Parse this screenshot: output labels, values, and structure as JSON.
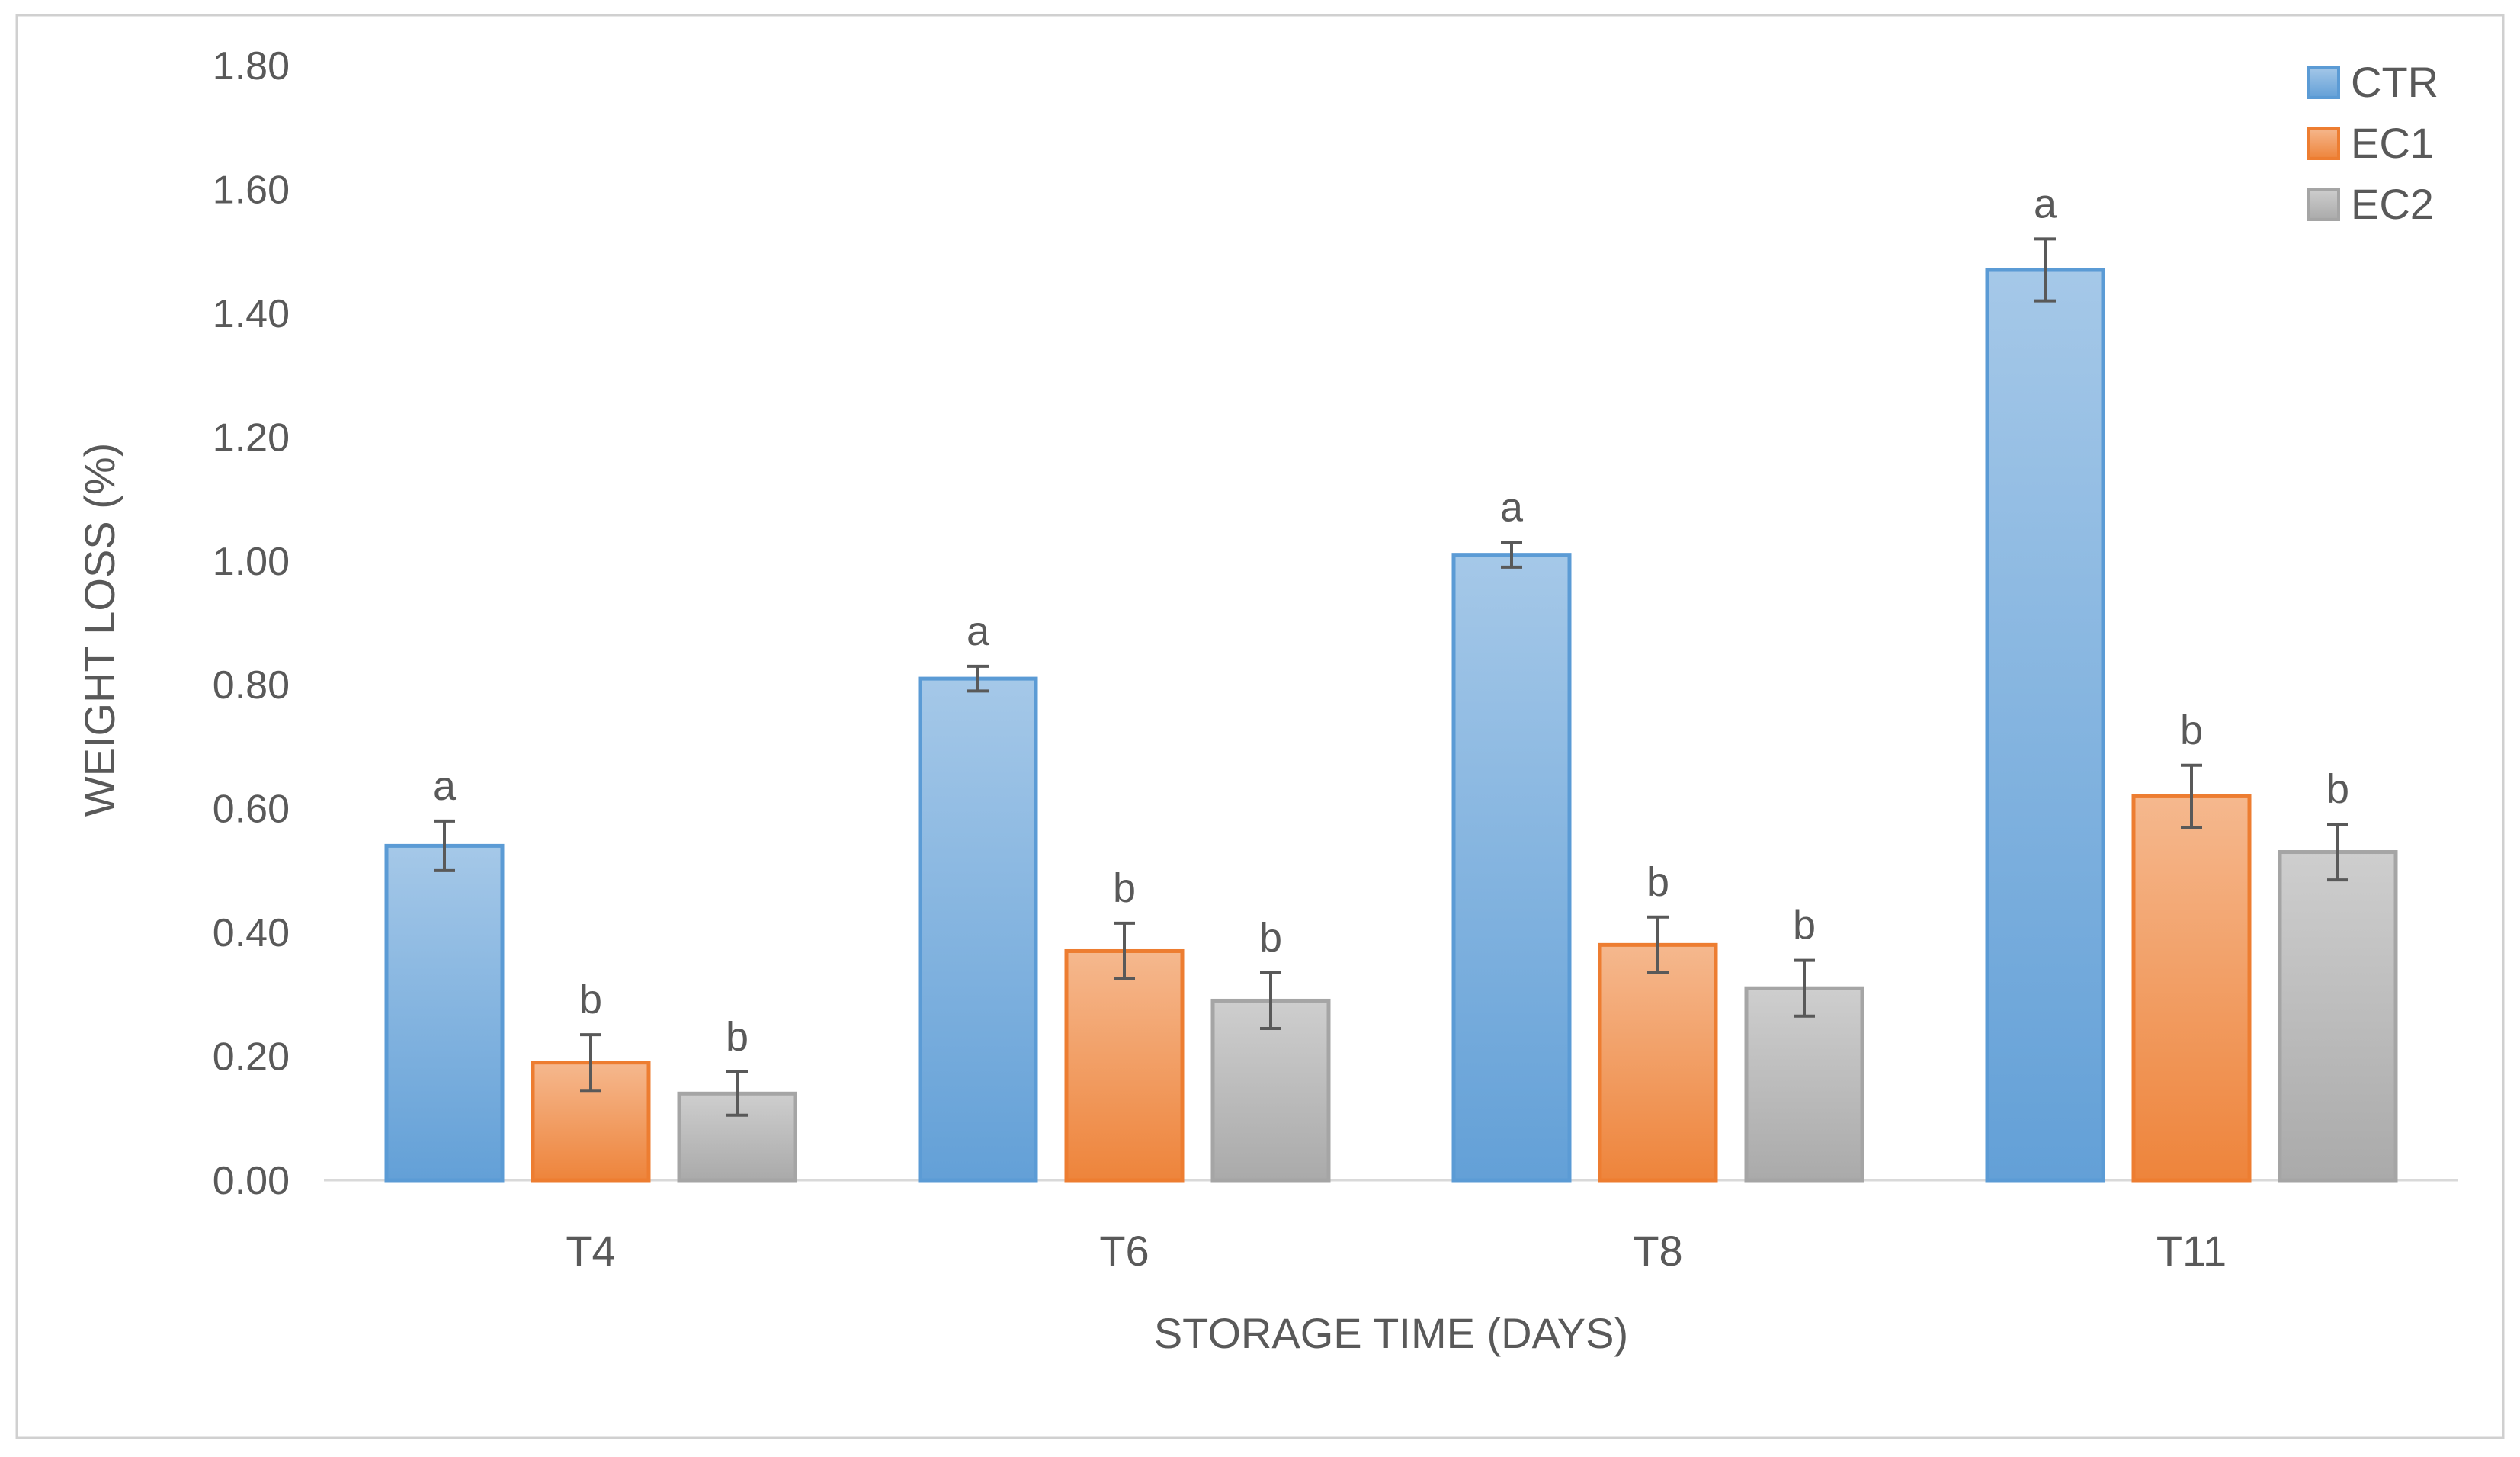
{
  "chart_data": {
    "type": "bar",
    "xlabel": "STORAGE TIME (DAYS)",
    "ylabel": "WEIGHT LOSS (%)",
    "ylim": [
      0,
      1.8
    ],
    "y_ticks": [
      "0.00",
      "0.20",
      "0.40",
      "0.60",
      "0.80",
      "1.00",
      "1.20",
      "1.40",
      "1.60",
      "1.80"
    ],
    "y_tick_values": [
      0,
      0.2,
      0.4,
      0.6,
      0.8,
      1.0,
      1.2,
      1.4,
      1.6,
      1.8
    ],
    "categories": [
      "T4",
      "T6",
      "T8",
      "T11"
    ],
    "grid": false,
    "legend_position": "top-right",
    "series": [
      {
        "name": "CTR",
        "color": "#5B9BD5",
        "values": [
          0.54,
          0.81,
          1.01,
          1.47
        ],
        "errors": [
          0.04,
          0.02,
          0.02,
          0.05
        ],
        "labels": [
          "a",
          "a",
          "a",
          "a"
        ]
      },
      {
        "name": "EC1",
        "color": "#ED7D31",
        "values": [
          0.19,
          0.37,
          0.38,
          0.62
        ],
        "errors": [
          0.045,
          0.045,
          0.045,
          0.05
        ],
        "labels": [
          "b",
          "b",
          "b",
          "b"
        ]
      },
      {
        "name": "EC2",
        "color": "#A5A5A5",
        "values": [
          0.14,
          0.29,
          0.31,
          0.53
        ],
        "errors": [
          0.035,
          0.045,
          0.045,
          0.045
        ],
        "labels": [
          "b",
          "b",
          "b",
          "b"
        ]
      }
    ]
  }
}
